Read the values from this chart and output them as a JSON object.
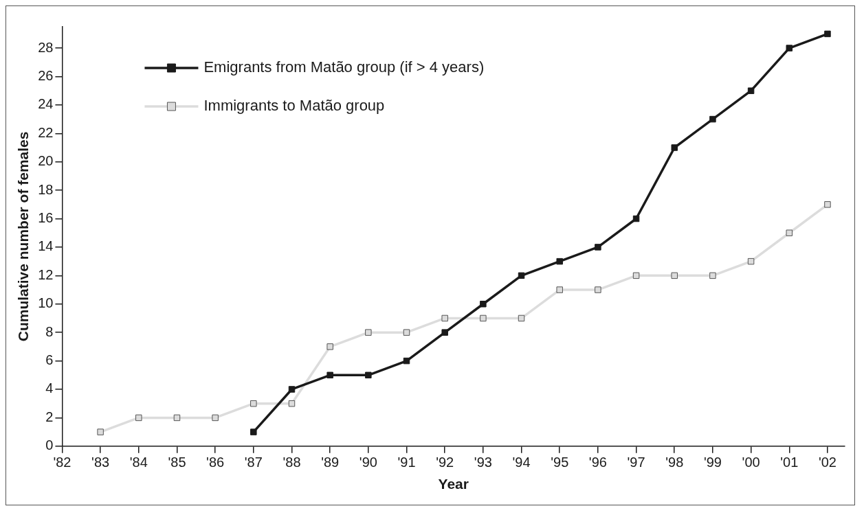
{
  "chart_data": {
    "type": "line",
    "xlabel": "Year",
    "ylabel": "Cumulative number of females",
    "xlim": [
      1982,
      2002.45
    ],
    "xticks": [
      {
        "value": 1982,
        "label": "'82"
      },
      {
        "value": 1983,
        "label": "'83"
      },
      {
        "value": 1984,
        "label": "'84"
      },
      {
        "value": 1985,
        "label": "'85"
      },
      {
        "value": 1986,
        "label": "'86"
      },
      {
        "value": 1987,
        "label": "'87"
      },
      {
        "value": 1988,
        "label": "'88"
      },
      {
        "value": 1989,
        "label": "'89"
      },
      {
        "value": 1990,
        "label": "'90"
      },
      {
        "value": 1991,
        "label": "'91"
      },
      {
        "value": 1992,
        "label": "'92"
      },
      {
        "value": 1993,
        "label": "'93"
      },
      {
        "value": 1994,
        "label": "'94"
      },
      {
        "value": 1995,
        "label": "'95"
      },
      {
        "value": 1996,
        "label": "'96"
      },
      {
        "value": 1997,
        "label": "'97"
      },
      {
        "value": 1998,
        "label": "'98"
      },
      {
        "value": 1999,
        "label": "'99"
      },
      {
        "value": 2000,
        "label": "'00"
      },
      {
        "value": 2001,
        "label": "'01"
      },
      {
        "value": 2002,
        "label": "'02"
      }
    ],
    "ylim": [
      0,
      29.5
    ],
    "yticks": [
      0,
      2,
      4,
      6,
      8,
      10,
      12,
      14,
      16,
      18,
      20,
      22,
      24,
      26,
      28
    ],
    "grid": false,
    "legend": "top left",
    "marker": "square",
    "line_style": "solid",
    "series": [
      {
        "name": "Emigrants from Matão group (if > 4 years)",
        "color": "#1a1a1a",
        "x": [
          1987,
          1988,
          1989,
          1990,
          1991,
          1992,
          1993,
          1994,
          1995,
          1996,
          1997,
          1998,
          1999,
          2000,
          2001,
          2002
        ],
        "values": [
          1,
          4,
          5,
          5,
          6,
          8,
          10,
          12,
          13,
          14,
          16,
          21,
          23,
          25,
          28,
          29
        ]
      },
      {
        "name": "Immigrants to Matão group",
        "color": "#dcdcdc",
        "x": [
          1983,
          1984,
          1985,
          1986,
          1987,
          1988,
          1989,
          1990,
          1991,
          1992,
          1993,
          1994,
          1995,
          1996,
          1997,
          1998,
          1999,
          2000,
          2001,
          2002
        ],
        "values": [
          1,
          2,
          2,
          2,
          3,
          3,
          7,
          8,
          8,
          9,
          9,
          9,
          11,
          11,
          12,
          12,
          12,
          13,
          15,
          17
        ]
      }
    ]
  }
}
